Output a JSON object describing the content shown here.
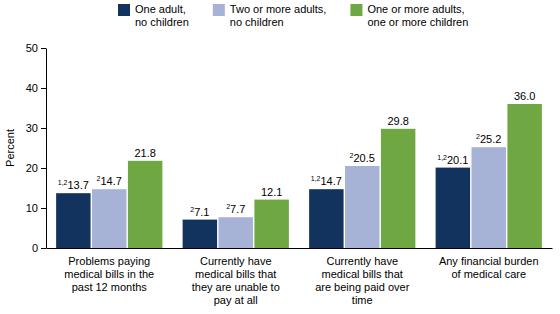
{
  "chart_data": {
    "type": "bar",
    "y_label": "Percent",
    "categories": [
      "Problems paying\nmedical bills in the\npast 12 months",
      "Currently have\nmedical bills that\nthey are unable to\npay at all",
      "Currently have\nmedical bills that\nare being paid over\ntime",
      "Any financial burden\nof medical care"
    ],
    "series": [
      {
        "name": "One adult,\nno children",
        "color": "#13335f",
        "values": [
          13.7,
          7.1,
          14.7,
          20.1
        ],
        "value_labels": [
          "13.7",
          "7.1",
          "14.7",
          "20.1"
        ],
        "footnotes": [
          "1,2",
          "2",
          "1,2",
          "1,2"
        ]
      },
      {
        "name": "Two or more adults,\nno children",
        "color": "#a6b3d6",
        "values": [
          14.7,
          7.7,
          20.5,
          25.2
        ],
        "value_labels": [
          "14.7",
          "7.7",
          "20.5",
          "25.2"
        ],
        "footnotes": [
          "2",
          "2",
          "2",
          "2"
        ]
      },
      {
        "name": "One or more adults,\none or more children",
        "color": "#6fa842",
        "values": [
          21.8,
          12.1,
          29.8,
          36.0
        ],
        "value_labels": [
          "21.8",
          "12.1",
          "29.8",
          "36.0"
        ],
        "footnotes": [
          null,
          null,
          null,
          null
        ]
      }
    ],
    "ylim": [
      0,
      50
    ],
    "yticks": [
      0,
      10,
      20,
      30,
      40,
      50
    ],
    "grid": false,
    "legend": "top",
    "data_labels": true
  }
}
